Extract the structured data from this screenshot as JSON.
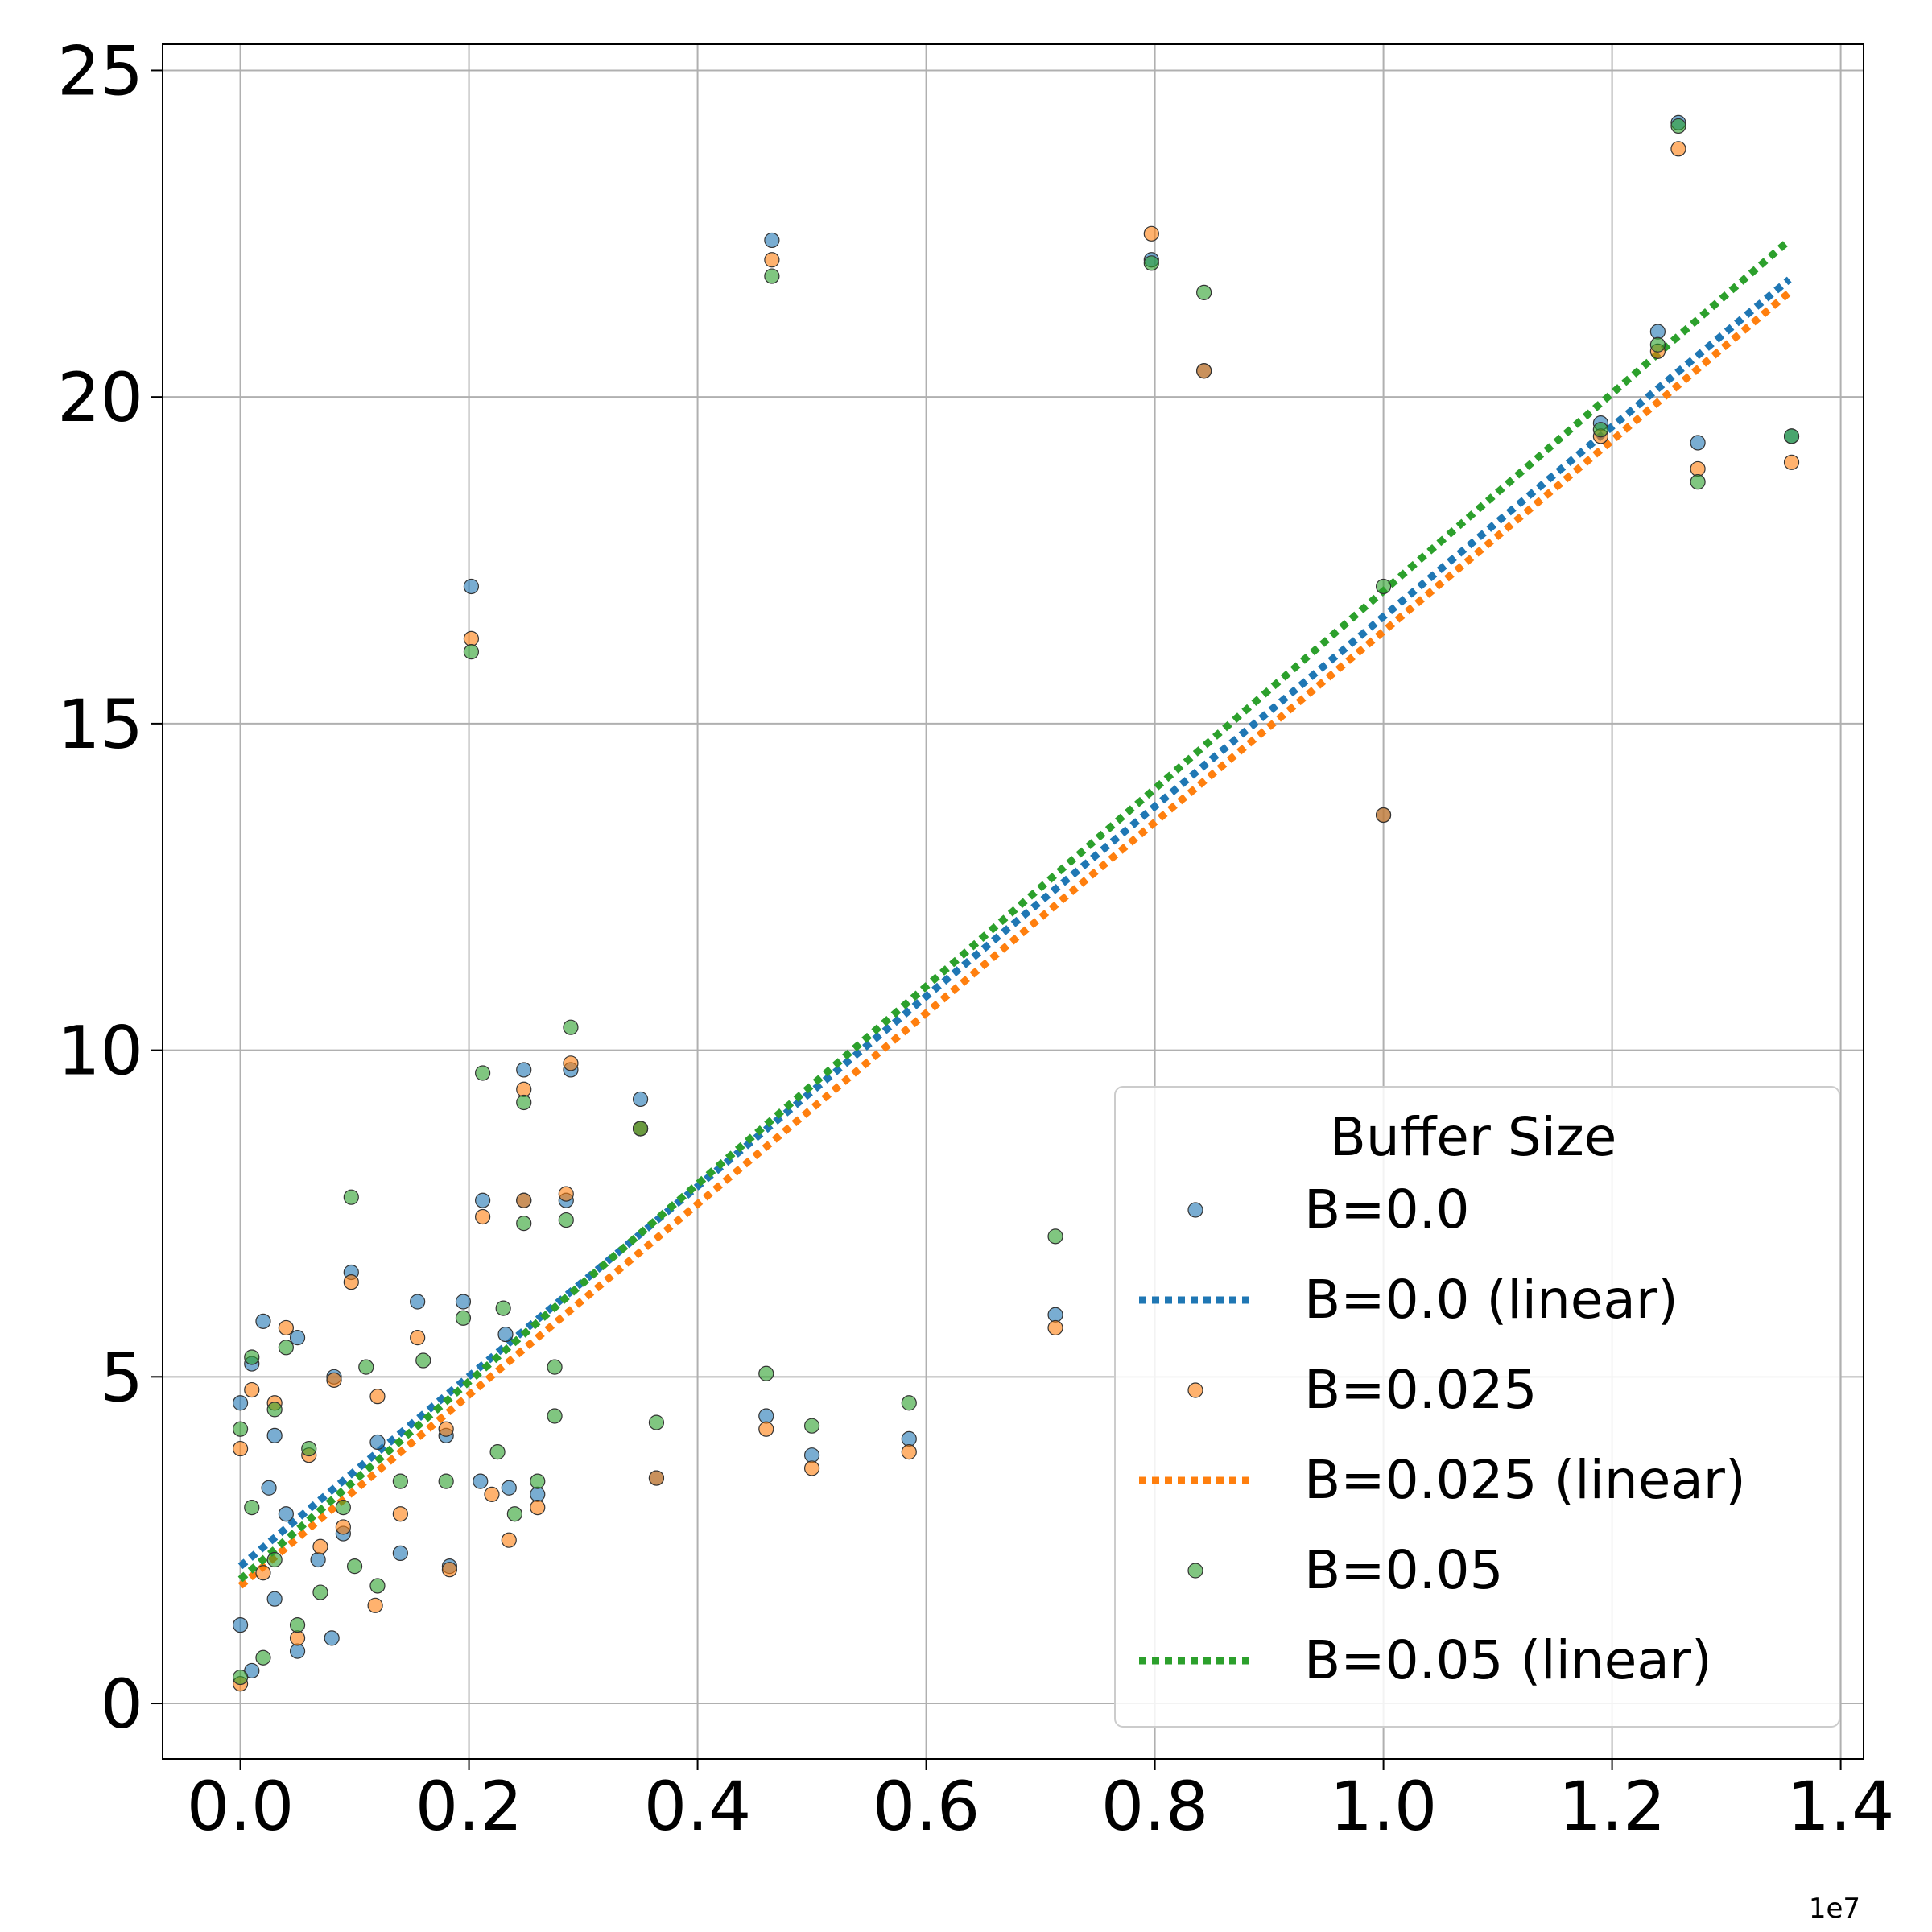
{
  "chart_data": {
    "type": "scatter",
    "title": "",
    "xlabel": "",
    "ylabel": "",
    "x_offset_label": "1e7",
    "xlim": [
      -0.068,
      1.42
    ],
    "ylim": [
      -0.85,
      25.4
    ],
    "x_ticks": [
      0.0,
      0.2,
      0.4,
      0.6,
      0.8,
      1.0,
      1.2,
      1.4
    ],
    "x_tick_labels": [
      "0.0",
      "0.2",
      "0.4",
      "0.6",
      "0.8",
      "1.0",
      "1.2",
      "1.4"
    ],
    "y_ticks": [
      0,
      5,
      10,
      15,
      20,
      25
    ],
    "y_tick_labels": [
      "0",
      "5",
      "10",
      "15",
      "20",
      "25"
    ],
    "grid": true,
    "legend": {
      "title": "Buffer Size",
      "placement": "bottom-right",
      "entries": [
        "B=0.0",
        "B=0.0 (linear)",
        "B=0.025",
        "B=0.025 (linear)",
        "B=0.05",
        "B=0.05 (linear)"
      ]
    },
    "colors": {
      "B=0.0": "#1f77b4",
      "B=0.025": "#ff7f0e",
      "B=0.05": "#2ca02c"
    },
    "series": [
      {
        "name": "B=0.0",
        "kind": "scatter",
        "color": "#1f77b4",
        "points": [
          [
            0.202,
            17.1
          ],
          [
            0.465,
            22.4
          ],
          [
            0.797,
            22.1
          ],
          [
            0.843,
            20.4
          ],
          [
            1.258,
            24.2
          ],
          [
            1.24,
            21.0
          ],
          [
            1.19,
            19.6
          ],
          [
            1.275,
            19.3
          ],
          [
            1.357,
            19.4
          ],
          [
            0.289,
            9.7
          ],
          [
            0.248,
            9.7
          ],
          [
            0.35,
            9.25
          ],
          [
            0.35,
            8.8
          ],
          [
            0.212,
            7.7
          ],
          [
            0.285,
            7.7
          ],
          [
            0.248,
            7.7
          ],
          [
            0.097,
            6.6
          ],
          [
            0.155,
            6.15
          ],
          [
            0.195,
            6.15
          ],
          [
            0.713,
            5.95
          ],
          [
            1.0,
            13.6
          ],
          [
            0.02,
            5.85
          ],
          [
            0.05,
            5.6
          ],
          [
            0.232,
            5.65
          ],
          [
            0.082,
            5.0
          ],
          [
            0.46,
            4.4
          ],
          [
            0.585,
            4.05
          ],
          [
            0.5,
            3.8
          ],
          [
            0.364,
            3.45
          ],
          [
            0.01,
            5.2
          ],
          [
            0.0,
            4.6
          ],
          [
            0.03,
            4.1
          ],
          [
            0.12,
            4.0
          ],
          [
            0.18,
            4.1
          ],
          [
            0.025,
            3.3
          ],
          [
            0.04,
            2.9
          ],
          [
            0.09,
            2.6
          ],
          [
            0.14,
            2.3
          ],
          [
            0.183,
            2.1
          ],
          [
            0.21,
            3.4
          ],
          [
            0.235,
            3.3
          ],
          [
            0.26,
            3.2
          ],
          [
            0.0,
            1.2
          ],
          [
            0.05,
            0.8
          ],
          [
            0.08,
            1.0
          ],
          [
            0.03,
            1.6
          ],
          [
            0.068,
            2.2
          ],
          [
            0.01,
            0.5
          ]
        ]
      },
      {
        "name": "B=0.025",
        "kind": "scatter",
        "color": "#ff7f0e",
        "points": [
          [
            0.202,
            16.3
          ],
          [
            0.465,
            22.1
          ],
          [
            0.797,
            22.5
          ],
          [
            0.843,
            20.4
          ],
          [
            1.258,
            23.8
          ],
          [
            1.24,
            20.7
          ],
          [
            1.19,
            19.4
          ],
          [
            1.275,
            18.9
          ],
          [
            1.357,
            19.0
          ],
          [
            0.289,
            9.8
          ],
          [
            0.248,
            9.4
          ],
          [
            0.35,
            8.8
          ],
          [
            0.212,
            7.45
          ],
          [
            0.285,
            7.8
          ],
          [
            0.248,
            7.7
          ],
          [
            0.097,
            6.45
          ],
          [
            0.155,
            5.6
          ],
          [
            0.713,
            5.75
          ],
          [
            1.0,
            13.6
          ],
          [
            0.04,
            5.75
          ],
          [
            0.082,
            4.95
          ],
          [
            0.46,
            4.2
          ],
          [
            0.585,
            3.85
          ],
          [
            0.5,
            3.6
          ],
          [
            0.364,
            3.45
          ],
          [
            0.01,
            4.8
          ],
          [
            0.03,
            4.6
          ],
          [
            0.12,
            4.7
          ],
          [
            0.18,
            4.2
          ],
          [
            0.06,
            3.8
          ],
          [
            0.09,
            2.7
          ],
          [
            0.14,
            2.9
          ],
          [
            0.183,
            2.05
          ],
          [
            0.22,
            3.2
          ],
          [
            0.235,
            2.5
          ],
          [
            0.26,
            3.0
          ],
          [
            0.118,
            1.5
          ],
          [
            0.0,
            0.3
          ],
          [
            0.05,
            1.0
          ],
          [
            0.02,
            2.0
          ],
          [
            0.07,
            2.4
          ],
          [
            0.0,
            3.9
          ]
        ]
      },
      {
        "name": "B=0.05",
        "kind": "scatter",
        "color": "#2ca02c",
        "points": [
          [
            0.202,
            16.1
          ],
          [
            0.465,
            21.85
          ],
          [
            0.797,
            22.05
          ],
          [
            0.843,
            21.6
          ],
          [
            1.258,
            24.15
          ],
          [
            1.24,
            20.8
          ],
          [
            1.19,
            19.5
          ],
          [
            1.275,
            18.7
          ],
          [
            1.357,
            19.4
          ],
          [
            0.289,
            10.35
          ],
          [
            0.248,
            9.2
          ],
          [
            0.35,
            8.8
          ],
          [
            0.212,
            9.65
          ],
          [
            0.285,
            7.4
          ],
          [
            0.248,
            7.35
          ],
          [
            0.097,
            7.75
          ],
          [
            0.195,
            5.9
          ],
          [
            0.713,
            7.15
          ],
          [
            1.0,
            17.1
          ],
          [
            0.23,
            6.05
          ],
          [
            0.01,
            5.3
          ],
          [
            0.04,
            5.45
          ],
          [
            0.46,
            5.05
          ],
          [
            0.585,
            4.6
          ],
          [
            0.5,
            4.25
          ],
          [
            0.364,
            4.3
          ],
          [
            0.275,
            5.15
          ],
          [
            0.0,
            4.2
          ],
          [
            0.03,
            4.5
          ],
          [
            0.11,
            5.15
          ],
          [
            0.16,
            5.25
          ],
          [
            0.275,
            4.4
          ],
          [
            0.06,
            3.9
          ],
          [
            0.09,
            3.0
          ],
          [
            0.14,
            3.4
          ],
          [
            0.18,
            3.4
          ],
          [
            0.225,
            3.85
          ],
          [
            0.26,
            3.4
          ],
          [
            0.24,
            2.9
          ],
          [
            0.1,
            2.1
          ],
          [
            0.12,
            1.8
          ],
          [
            0.0,
            0.4
          ],
          [
            0.02,
            0.7
          ],
          [
            0.05,
            1.2
          ],
          [
            0.07,
            1.7
          ],
          [
            0.03,
            2.2
          ],
          [
            0.01,
            3.0
          ]
        ]
      },
      {
        "name": "B=0.0 (linear)",
        "kind": "line",
        "color": "#1f77b4",
        "x": [
          0.0,
          1.355
        ],
        "y": [
          2.1,
          21.8
        ]
      },
      {
        "name": "B=0.025 (linear)",
        "kind": "line",
        "color": "#ff7f0e",
        "x": [
          0.0,
          1.355
        ],
        "y": [
          1.8,
          21.6
        ]
      },
      {
        "name": "B=0.05 (linear)",
        "kind": "line",
        "color": "#2ca02c",
        "x": [
          0.0,
          1.355
        ],
        "y": [
          1.9,
          22.4
        ]
      }
    ]
  }
}
